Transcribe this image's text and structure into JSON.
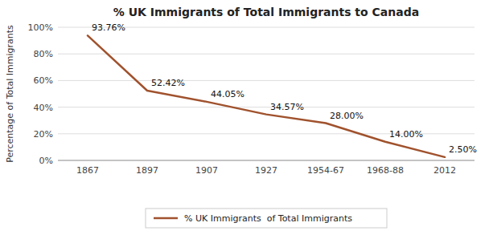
{
  "chart_data": {
    "type": "line",
    "title": "% UK Immigrants of Total Immigrants to Canada",
    "categories": [
      "1867",
      "1897",
      "1907",
      "1927",
      "1954-67",
      "1968-88",
      "2012"
    ],
    "series": [
      {
        "name": "% UK Immigrants  of Total Immigrants",
        "color": "#A0522D",
        "values": [
          93.76,
          52.42,
          44.05,
          34.57,
          28.0,
          14.0,
          2.5
        ],
        "value_labels": [
          "93.76%",
          "52.42%",
          "44.05%",
          "34.57%",
          "28.00%",
          "14.00%",
          "2.50%"
        ]
      }
    ],
    "ylabel": "Percentage of Total Immigrants",
    "ylim": [
      0,
      100
    ],
    "yticks": [
      {
        "value": 0,
        "label": "0%"
      },
      {
        "value": 20,
        "label": "20%"
      },
      {
        "value": 40,
        "label": "40%"
      },
      {
        "value": 60,
        "label": "60%"
      },
      {
        "value": 80,
        "label": "80%"
      },
      {
        "value": 100,
        "label": "100%"
      }
    ],
    "grid": true,
    "legend": "bottom",
    "data_labels": true
  }
}
